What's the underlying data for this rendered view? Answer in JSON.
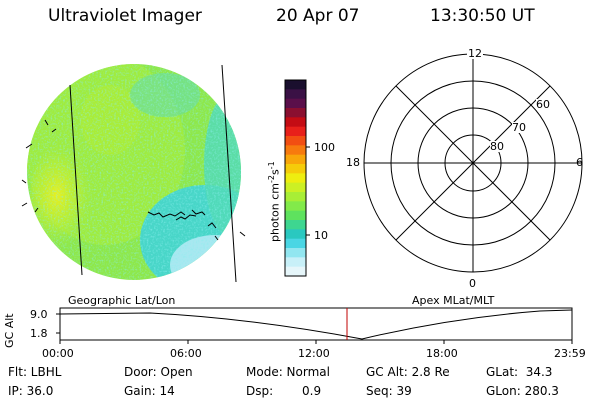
{
  "header": {
    "title": "Ultraviolet Imager",
    "date": "20 Apr 07",
    "time": "13:30:50 UT"
  },
  "colorbar": {
    "ticks": [
      "100",
      "10"
    ],
    "unit_label": "photon cm",
    "unit_exp1": "-2",
    "unit_s": "s",
    "unit_exp2": "-1",
    "colors": [
      "#1a0f2e",
      "#3a1145",
      "#5a0f4a",
      "#8a0f30",
      "#c40c14",
      "#e8201a",
      "#f24e12",
      "#f77a0e",
      "#f8a60a",
      "#f5cc0a",
      "#eeee10",
      "#ccf024",
      "#a8ee36",
      "#82ea4a",
      "#5ee25e",
      "#3ed690",
      "#2ac8c0",
      "#4ad6e4",
      "#92e6f0",
      "#c8f0f8",
      "#e6f6fa"
    ]
  },
  "left_panel": {
    "label": "Geographic Lat/Lon"
  },
  "right_panel": {
    "label": "Apex MLat/MLT",
    "mlt_labels": {
      "top": "12",
      "left": "18",
      "right": "6",
      "bottom": "0"
    },
    "mlat_labels": [
      "60",
      "70",
      "80"
    ]
  },
  "timeline": {
    "ylabel": "GC Alt",
    "y_ticks": [
      "9.0",
      "1.8"
    ],
    "x_ticks": [
      "00:00",
      "06:00",
      "12:00",
      "18:00",
      "23:59"
    ]
  },
  "info": {
    "flt": "Flt: LBHL",
    "ip": "IP: 36.0",
    "door": "Door: Open",
    "gain": "Gain: 14",
    "mode": "Mode: Normal",
    "dsp_label": "Dsp:",
    "dsp_value": "0.9",
    "gc_alt": "GC Alt: 2.8 Re",
    "seq": "Seq: 39",
    "glat": "GLat:  34.3",
    "glon": "GLon: 280.3"
  }
}
